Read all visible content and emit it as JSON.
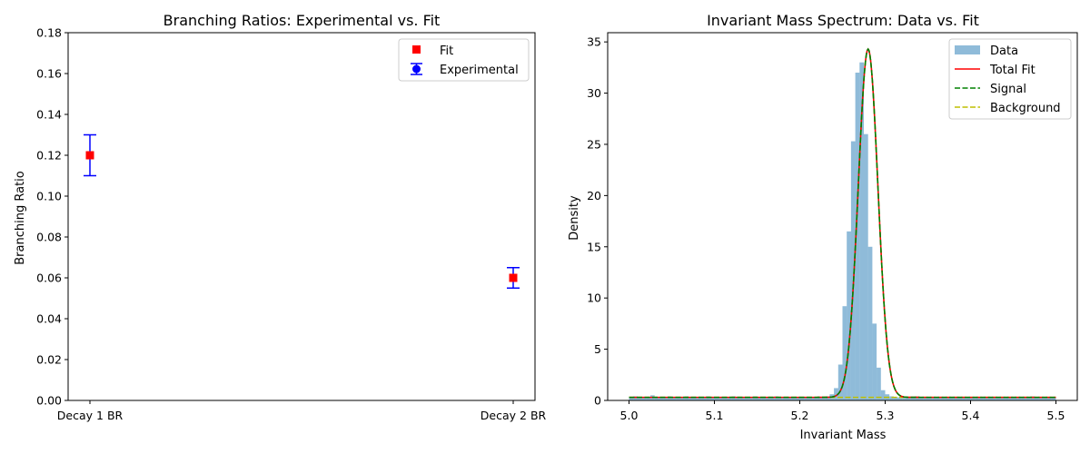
{
  "chart_data": [
    {
      "type": "scatter",
      "title": "Branching Ratios: Experimental vs. Fit",
      "xlabel": "",
      "ylabel": "Branching Ratio",
      "categories": [
        "Decay 1 BR",
        "Decay 2 BR"
      ],
      "ylim": [
        0.0,
        0.18
      ],
      "yticks": [
        0.0,
        0.02,
        0.04,
        0.06,
        0.08,
        0.1,
        0.12,
        0.14,
        0.16,
        0.18
      ],
      "ytick_labels": [
        "0.00",
        "0.02",
        "0.04",
        "0.06",
        "0.08",
        "0.10",
        "0.12",
        "0.14",
        "0.16",
        "0.18"
      ],
      "grid": false,
      "legend_position": "top-right",
      "series": [
        {
          "name": "Fit",
          "values": [
            0.12,
            0.06
          ],
          "color": "#ff0000",
          "marker": "square"
        },
        {
          "name": "Experimental",
          "values": [
            0.12,
            0.06
          ],
          "errors": [
            0.01,
            0.005
          ],
          "color": "#0000ff",
          "marker": "circle"
        }
      ]
    },
    {
      "type": "bar",
      "title": "Invariant Mass Spectrum: Data vs. Fit",
      "xlabel": "Invariant Mass",
      "ylabel": "Density",
      "xlim": [
        4.975,
        5.525
      ],
      "ylim": [
        0,
        35.9
      ],
      "xticks": [
        5.0,
        5.1,
        5.2,
        5.3,
        5.4,
        5.5
      ],
      "xtick_labels": [
        "5.0",
        "5.1",
        "5.2",
        "5.3",
        "5.4",
        "5.5"
      ],
      "yticks": [
        0,
        5,
        10,
        15,
        20,
        25,
        30,
        35
      ],
      "ytick_labels": [
        "0",
        "5",
        "10",
        "15",
        "20",
        "25",
        "30",
        "35"
      ],
      "grid": false,
      "legend_position": "top-right",
      "histogram": {
        "name": "Data",
        "color": "#1f77b4",
        "bin_edges_range": [
          5.0,
          5.5
        ],
        "bins": 100,
        "values": [
          0.3,
          0.4,
          0.3,
          0.3,
          0.3,
          0.5,
          0.3,
          0.3,
          0.3,
          0.4,
          0.3,
          0.3,
          0.3,
          0.4,
          0.3,
          0.3,
          0.3,
          0.3,
          0.4,
          0.3,
          0.3,
          0.3,
          0.3,
          0.3,
          0.4,
          0.3,
          0.3,
          0.3,
          0.3,
          0.4,
          0.3,
          0.3,
          0.3,
          0.3,
          0.4,
          0.3,
          0.3,
          0.3,
          0.3,
          0.3,
          0.3,
          0.3,
          0.3,
          0.3,
          0.3,
          0.3,
          0.4,
          0.6,
          1.2,
          3.5,
          9.2,
          16.5,
          25.3,
          32.0,
          33.0,
          26.0,
          15.0,
          7.5,
          3.2,
          1.0,
          0.6,
          0.4,
          0.3,
          0.3,
          0.3,
          0.3,
          0.3,
          0.4,
          0.3,
          0.3,
          0.3,
          0.3,
          0.3,
          0.3,
          0.3,
          0.3,
          0.3,
          0.3,
          0.3,
          0.3,
          0.3,
          0.3,
          0.3,
          0.3,
          0.3,
          0.3,
          0.3,
          0.3,
          0.3,
          0.3,
          0.3,
          0.3,
          0.3,
          0.3,
          0.4,
          0.3,
          0.3,
          0.3,
          0.3,
          0.3
        ]
      },
      "curves": [
        {
          "name": "Total Fit",
          "color": "#ff0000",
          "style": "solid",
          "function": "gaussian+constant",
          "mean": 5.28,
          "sigma": 0.0115,
          "peak": 34.0,
          "constant": 0.3
        },
        {
          "name": "Signal",
          "color": "#008000",
          "style": "dashed",
          "function": "gaussian+constant",
          "mean": 5.28,
          "sigma": 0.0115,
          "peak": 34.0,
          "constant": 0.3
        },
        {
          "name": "Background",
          "color": "#bfbf00",
          "style": "dashed",
          "function": "constant",
          "constant": 0.3
        }
      ]
    }
  ]
}
